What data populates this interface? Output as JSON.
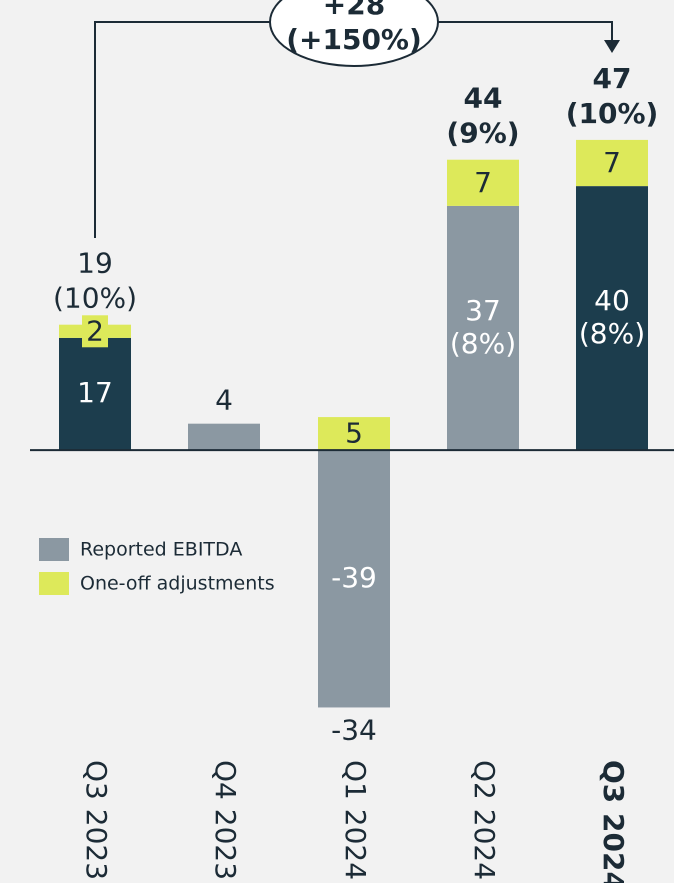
{
  "chart_data": {
    "type": "stacked-bar",
    "categories": [
      "Q3 2023",
      "Q4 2023",
      "Q1 2024",
      "Q2 2024",
      "Q3 2024"
    ],
    "series": [
      {
        "name": "Reported EBITDA",
        "color": "#8b98a2",
        "colors": [
          "#1c3d4d",
          "#8b98a2",
          "#8b98a2",
          "#8b98a2",
          "#1c3d4d"
        ],
        "values": [
          17,
          4,
          -39,
          37,
          40
        ],
        "margins": [
          null,
          null,
          null,
          "(8%)",
          "(8%)"
        ]
      },
      {
        "name": "One-off adjustments",
        "color": "#dde95a",
        "values": [
          2,
          0,
          5,
          7,
          7
        ]
      }
    ],
    "totals": {
      "values": [
        19,
        4,
        -34,
        44,
        47
      ],
      "margins": [
        "(10%)",
        null,
        null,
        "(9%)",
        "(10%)"
      ]
    },
    "annotation": {
      "change": "+28",
      "change_pct": "(+150%)"
    },
    "ylim": [
      -65.6,
      68.2
    ],
    "legend": "left"
  }
}
